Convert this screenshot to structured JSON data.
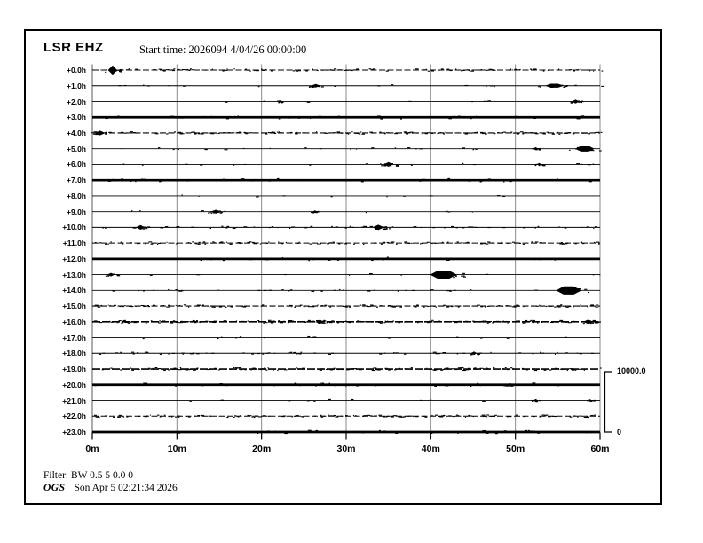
{
  "header": {
    "station": "LSR EHZ",
    "start_time": "Start time: 2026094  4/04/26 00:00:00"
  },
  "scale_bar": {
    "max_label": "10000.0",
    "min_label": "0"
  },
  "footer": {
    "filter": "Filter: BW 0.5 5 0.0 0",
    "agency": "OGS",
    "datetime": "Son Apr  5 02:21:34 2026"
  },
  "colors": {
    "trace": "#000000",
    "grid": "#8a8a8a",
    "axis": "#000000",
    "background": "#ffffff"
  },
  "chart_data": {
    "type": "line",
    "subtype": "helicorder-seismogram",
    "station": "LSR",
    "channel": "EHZ",
    "title": "LSR EHZ",
    "start_day": "2026094 4/04/26 00:00:00",
    "grid": true,
    "x_axis": {
      "label_unit": "minutes",
      "ticks": [
        "0m",
        "10m",
        "20m",
        "30m",
        "40m",
        "50m",
        "60m"
      ],
      "minutes_per_row": 60
    },
    "amplitude_scale": {
      "max": 10000.0,
      "min": 0
    },
    "rows": [
      {
        "label": "+0.0h",
        "activity": "high",
        "events": [
          {
            "m": 2.4,
            "w": 1.1,
            "h": 5.2
          }
        ]
      },
      {
        "label": "+1.0h",
        "activity": "low",
        "events": [
          {
            "m": 26.4,
            "w": 1.2,
            "h": 2.0
          },
          {
            "m": 54.6,
            "w": 2.2,
            "h": 2.2
          }
        ]
      },
      {
        "label": "+2.0h",
        "activity": "sparse",
        "events": [
          {
            "m": 22.2,
            "w": 0.6,
            "h": 1.8
          },
          {
            "m": 57.1,
            "w": 0.9,
            "h": 2.2
          }
        ]
      },
      {
        "label": "+3.0h",
        "activity": "saturated",
        "events": []
      },
      {
        "label": "+4.0h",
        "activity": "high",
        "events": [
          {
            "m": 0.9,
            "w": 1.3,
            "h": 2.6
          }
        ]
      },
      {
        "label": "+5.0h",
        "activity": "low",
        "events": [
          {
            "m": 52.4,
            "w": 0.6,
            "h": 1.8
          },
          {
            "m": 58.2,
            "w": 2.3,
            "h": 3.2
          }
        ]
      },
      {
        "label": "+6.0h",
        "activity": "sparse",
        "events": [
          {
            "m": 35.0,
            "w": 1.1,
            "h": 2.6
          },
          {
            "m": 52.8,
            "w": 0.6,
            "h": 1.6
          }
        ]
      },
      {
        "label": "+7.0h",
        "activity": "saturated",
        "events": []
      },
      {
        "label": "+8.0h",
        "activity": "sparse",
        "events": []
      },
      {
        "label": "+9.0h",
        "activity": "sparse",
        "events": [
          {
            "m": 14.6,
            "w": 1.3,
            "h": 2.2
          },
          {
            "m": 26.3,
            "w": 0.5,
            "h": 1.6
          }
        ]
      },
      {
        "label": "+10.0h",
        "activity": "medium",
        "events": [
          {
            "m": 5.7,
            "w": 1.1,
            "h": 2.6
          },
          {
            "m": 33.8,
            "w": 1.4,
            "h": 3.0
          }
        ]
      },
      {
        "label": "+11.0h",
        "activity": "high",
        "events": []
      },
      {
        "label": "+12.0h",
        "activity": "saturated",
        "events": []
      },
      {
        "label": "+13.0h",
        "activity": "sparse",
        "events": [
          {
            "m": 2.2,
            "w": 0.9,
            "h": 2.0
          },
          {
            "m": 41.5,
            "w": 3.2,
            "h": 4.6
          }
        ]
      },
      {
        "label": "+14.0h",
        "activity": "low",
        "events": [
          {
            "m": 56.3,
            "w": 3.0,
            "h": 4.6
          }
        ]
      },
      {
        "label": "+15.0h",
        "activity": "high",
        "events": []
      },
      {
        "label": "+16.0h",
        "activity": "dense",
        "events": [
          {
            "m": 26.9,
            "w": 0.9,
            "h": 2.4
          },
          {
            "m": 58.6,
            "w": 1.3,
            "h": 2.4
          }
        ]
      },
      {
        "label": "+17.0h",
        "activity": "sparse",
        "events": []
      },
      {
        "label": "+18.0h",
        "activity": "medium",
        "events": [
          {
            "m": 45.1,
            "w": 0.7,
            "h": 2.0
          }
        ]
      },
      {
        "label": "+19.0h",
        "activity": "dense",
        "events": []
      },
      {
        "label": "+20.0h",
        "activity": "saturated",
        "events": [
          {
            "m": 49.4,
            "w": 0.6,
            "h": 1.8
          }
        ]
      },
      {
        "label": "+21.0h",
        "activity": "sparse",
        "events": [
          {
            "m": 52.4,
            "w": 0.6,
            "h": 1.6
          },
          {
            "m": 58.8,
            "w": 0.5,
            "h": 1.4
          }
        ]
      },
      {
        "label": "+22.0h",
        "activity": "high",
        "events": []
      },
      {
        "label": "+23.0h",
        "activity": "saturated",
        "events": []
      }
    ]
  }
}
